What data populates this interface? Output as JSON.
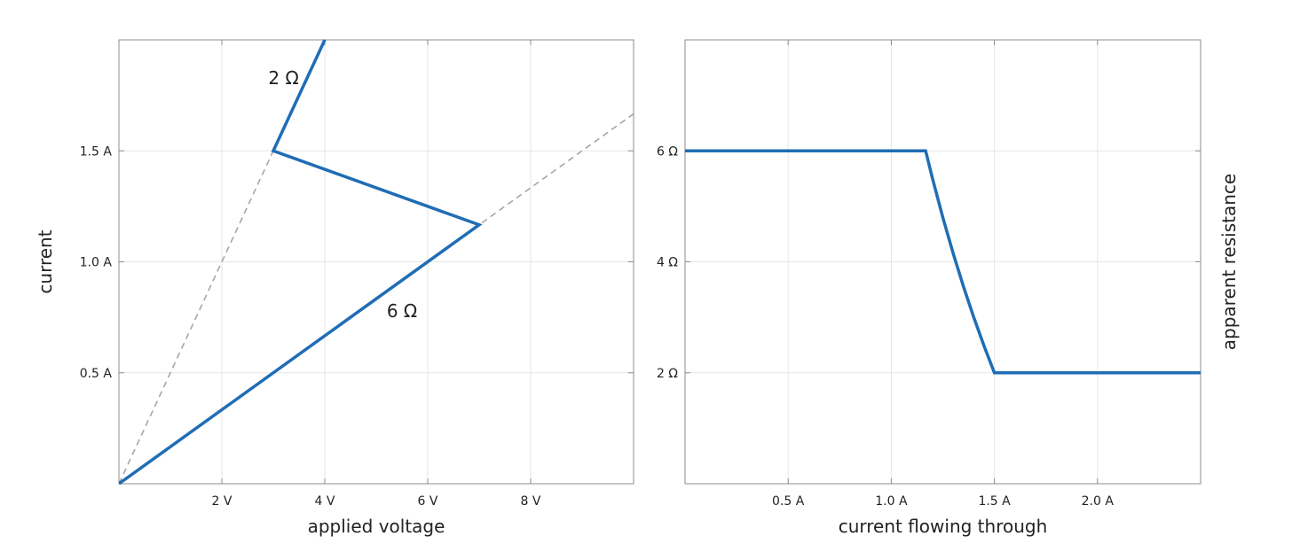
{
  "chart_data": [
    {
      "type": "line",
      "xlabel": "applied voltage",
      "ylabel": "current",
      "xlim": [
        0,
        10
      ],
      "ylim": [
        0,
        2
      ],
      "grid": true,
      "xticks": [
        2,
        4,
        6,
        8
      ],
      "xtick_labels": [
        "2 V",
        "4 V",
        "6 V",
        "8 V"
      ],
      "yticks": [
        0.5,
        1.0,
        1.5
      ],
      "ytick_labels": [
        "0.5 A",
        "1.0 A",
        "1.5 A"
      ],
      "series": [
        {
          "x": [
            0,
            7,
            3,
            4
          ],
          "y": [
            0,
            1.1667,
            1.5,
            2.0
          ],
          "color": "#1f6db5",
          "style": "solid"
        }
      ],
      "reference_lines": [
        {
          "x": [
            0,
            4
          ],
          "y": [
            0,
            2.0
          ],
          "color": "#a6a6a6",
          "style": "dashed"
        },
        {
          "x": [
            0,
            10
          ],
          "y": [
            0,
            1.6667
          ],
          "color": "#a6a6a6",
          "style": "dashed"
        }
      ],
      "annotations": [
        {
          "text": "2 Ω",
          "x": 3.2,
          "y": 1.8
        },
        {
          "text": "6 Ω",
          "x": 5.5,
          "y": 0.75
        }
      ]
    },
    {
      "type": "line",
      "xlabel": "current flowing through",
      "ylabel": "apparent resistance",
      "xlim": [
        0,
        2.5
      ],
      "ylim": [
        0,
        8
      ],
      "grid": true,
      "xticks": [
        0.5,
        1.0,
        1.5,
        2.0
      ],
      "xtick_labels": [
        "0.5 A",
        "1.0 A",
        "1.5 A",
        "2.0 A"
      ],
      "yticks": [
        2,
        4,
        6
      ],
      "ytick_labels": [
        "2 Ω",
        "4 Ω",
        "6 Ω"
      ],
      "series": [
        {
          "x": [
            0,
            1.1667,
            1.2,
            1.25,
            1.3,
            1.35,
            1.4,
            1.45,
            1.5,
            2.5
          ],
          "y": [
            6,
            6,
            5.5,
            4.8,
            4.1538,
            3.5556,
            3.0,
            2.4828,
            2.0,
            2.0
          ],
          "color": "#1f6db5",
          "style": "solid"
        }
      ]
    }
  ]
}
